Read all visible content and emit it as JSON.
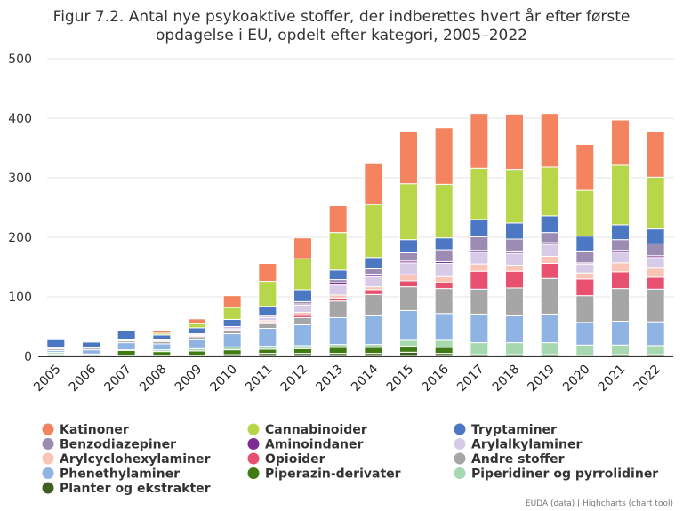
{
  "chart_data": {
    "type": "bar",
    "stacked": true,
    "title": "Figur 7.2. Antal nye psykoaktive stoffer, der indberettes hvert år efter første opdagelse i EU, opdelt efter kategori, 2005–2022",
    "title_lines": [
      "Figur 7.2. Antal nye psykoaktive stoffer, der indberettes hvert år efter første",
      "opdagelse i EU, opdelt efter kategori, 2005–2022"
    ],
    "xlabel": "",
    "ylabel": "",
    "ylim": [
      0,
      500
    ],
    "yticks": [
      "0",
      "100",
      "200",
      "300",
      "400",
      "500"
    ],
    "grid": true,
    "legend_position": "bottom",
    "categories": [
      "2005",
      "2006",
      "2007",
      "2008",
      "2009",
      "2010",
      "2011",
      "2012",
      "2013",
      "2014",
      "2015",
      "2016",
      "2017",
      "2018",
      "2019",
      "2020",
      "2021",
      "2022"
    ],
    "series": [
      {
        "name": "Planter og ekstrakter",
        "color": "#3e5e22",
        "values": [
          2,
          2,
          2,
          2,
          2,
          3,
          5,
          5,
          5,
          5,
          7,
          5,
          3,
          3,
          3,
          2,
          3,
          3
        ]
      },
      {
        "name": "Piperazin-derivater",
        "color": "#3f7a12",
        "values": [
          2,
          1,
          8,
          6,
          7,
          8,
          7,
          8,
          10,
          10,
          10,
          10,
          0,
          0,
          0,
          0,
          0,
          0
        ]
      },
      {
        "name": "Piperidiner og pyrrolidiner",
        "color": "#a8d8b0",
        "values": [
          3,
          1,
          1,
          3,
          4,
          5,
          5,
          5,
          5,
          5,
          10,
          12,
          20,
          20,
          20,
          17,
          16,
          15
        ]
      },
      {
        "name": "Phenethylaminer",
        "color": "#8fb3e3",
        "values": [
          3,
          7,
          12,
          10,
          15,
          22,
          30,
          35,
          45,
          48,
          50,
          45,
          48,
          45,
          48,
          38,
          40,
          40
        ]
      },
      {
        "name": "Andre stoffer",
        "color": "#a6a6a6",
        "values": [
          3,
          3,
          3,
          4,
          5,
          5,
          8,
          12,
          28,
          36,
          40,
          42,
          42,
          47,
          60,
          45,
          55,
          55
        ]
      },
      {
        "name": "Opioider",
        "color": "#e8506f",
        "values": [
          0,
          0,
          0,
          0,
          0,
          0,
          2,
          4,
          5,
          8,
          10,
          10,
          30,
          28,
          25,
          28,
          28,
          20
        ]
      },
      {
        "name": "Arylcyclohexylaminer",
        "color": "#fac4b6",
        "values": [
          0,
          0,
          0,
          0,
          2,
          2,
          3,
          5,
          5,
          5,
          10,
          10,
          12,
          10,
          12,
          10,
          15,
          15
        ]
      },
      {
        "name": "Arylalkylaminer",
        "color": "#d7cbe8",
        "values": [
          2,
          1,
          1,
          2,
          2,
          3,
          5,
          12,
          17,
          17,
          20,
          22,
          20,
          20,
          20,
          15,
          18,
          18
        ]
      },
      {
        "name": "Aminoindaner",
        "color": "#7b2b91",
        "values": [
          0,
          0,
          1,
          1,
          1,
          2,
          2,
          2,
          4,
          4,
          3,
          3,
          3,
          4,
          3,
          2,
          3,
          3
        ]
      },
      {
        "name": "Benzodiazepiner",
        "color": "#9c8cb3",
        "values": [
          0,
          0,
          0,
          0,
          0,
          0,
          2,
          4,
          5,
          9,
          14,
          20,
          23,
          20,
          17,
          20,
          18,
          20
        ]
      },
      {
        "name": "Tryptaminer",
        "color": "#4c77c2",
        "values": [
          13,
          9,
          15,
          8,
          10,
          12,
          15,
          20,
          16,
          19,
          22,
          20,
          29,
          27,
          28,
          25,
          25,
          25
        ]
      },
      {
        "name": "Cannabinoider",
        "color": "#b8d64a",
        "values": [
          0,
          0,
          0,
          3,
          7,
          20,
          42,
          52,
          63,
          89,
          94,
          90,
          86,
          90,
          82,
          77,
          100,
          87
        ]
      },
      {
        "name": "Katinoner",
        "color": "#f4845f",
        "values": [
          0,
          0,
          0,
          5,
          8,
          20,
          30,
          35,
          45,
          70,
          88,
          95,
          92,
          93,
          90,
          77,
          76,
          77
        ]
      }
    ],
    "legend_order": [
      "Katinoner",
      "Cannabinoider",
      "Tryptaminer",
      "Benzodiazepiner",
      "Aminoindaner",
      "Arylalkylaminer",
      "Arylcyclohexylaminer",
      "Opioider",
      "Andre stoffer",
      "Phenethylaminer",
      "Piperazin-derivater",
      "Piperidiner og pyrrolidiner",
      "Planter og ekstrakter"
    ],
    "credits": "EUDA (data) | Highcharts (chart tool)"
  }
}
